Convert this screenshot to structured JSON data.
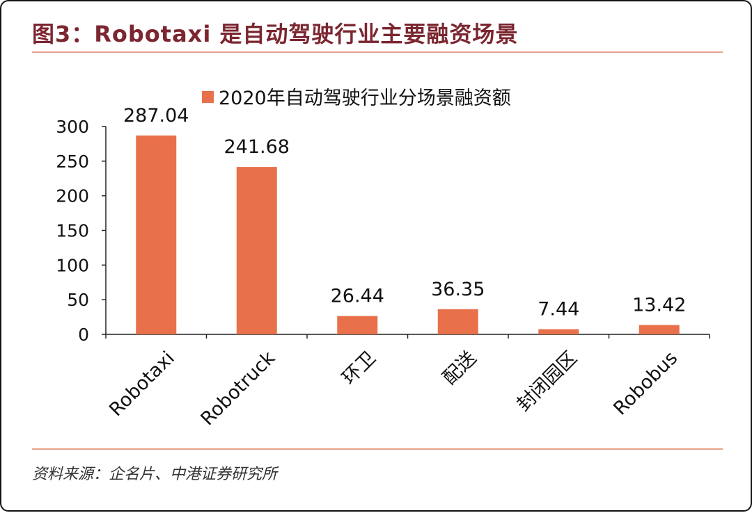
{
  "header": {
    "title": "图3：Robotaxi 是自动驾驶行业主要融资场景"
  },
  "footer": {
    "source": "资料来源：企名片、中港证券研究所"
  },
  "chart_data": {
    "type": "bar",
    "categories": [
      "Robotaxi",
      "Robotruck",
      "环卫",
      "配送",
      "封闭园区",
      "Robobus"
    ],
    "series": [
      {
        "name": "2020年自动驾驶行业分场景融资额",
        "values": [
          287.04,
          241.68,
          26.44,
          36.35,
          7.44,
          13.42
        ],
        "labels": [
          "287.04",
          "241.68",
          "26.44",
          "36.35",
          "7.44",
          "13.42"
        ]
      }
    ],
    "ylim": [
      0,
      300
    ],
    "yticks": [
      0,
      50,
      100,
      150,
      200,
      250,
      300
    ],
    "grid": false,
    "legend_position": "top",
    "bar_color": "#e8704a"
  }
}
